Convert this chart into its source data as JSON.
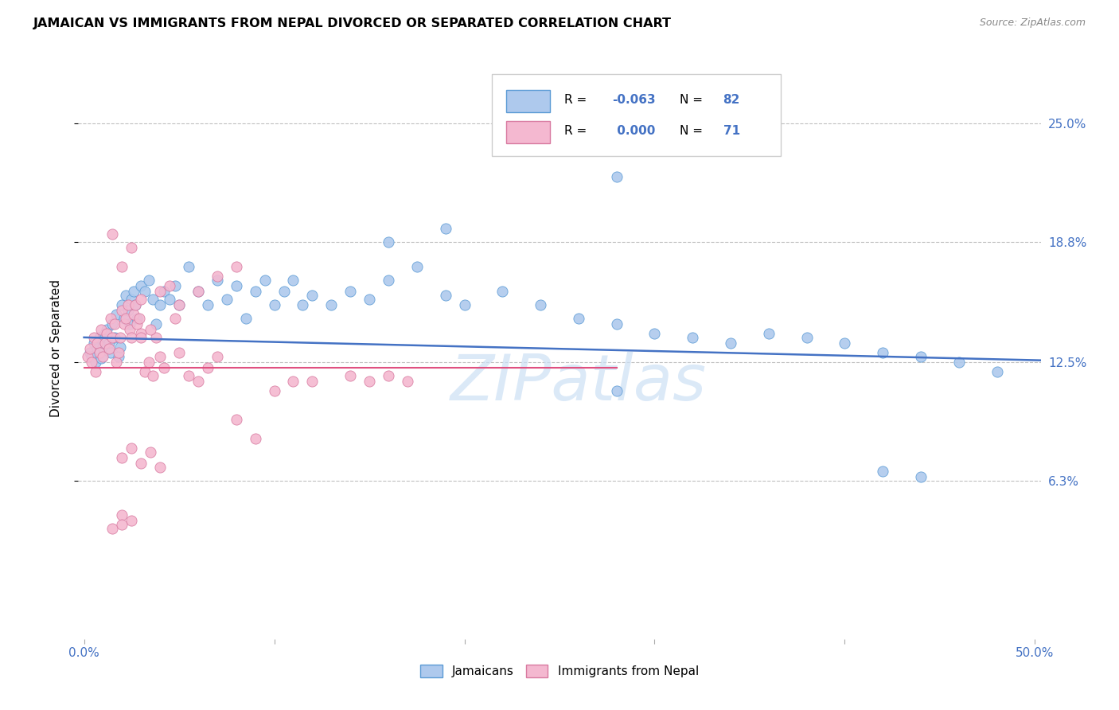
{
  "title": "JAMAICAN VS IMMIGRANTS FROM NEPAL DIVORCED OR SEPARATED CORRELATION CHART",
  "source": "Source: ZipAtlas.com",
  "ylabel": "Divorced or Separated",
  "ytick_values": [
    0.063,
    0.125,
    0.188,
    0.25
  ],
  "ytick_labels": [
    "6.3%",
    "12.5%",
    "18.8%",
    "25.0%"
  ],
  "xlim": [
    -0.003,
    0.503
  ],
  "ylim": [
    -0.02,
    0.285
  ],
  "blue_scatter_color": "#aec9ed",
  "blue_edge_color": "#5b9bd5",
  "pink_scatter_color": "#f4b8d0",
  "pink_edge_color": "#d87aa0",
  "blue_line_color": "#4472c4",
  "pink_line_color": "#e05080",
  "grid_color": "#c0c0c0",
  "watermark_color": "#cce0f5",
  "legend_box_color": "#f0f0f0",
  "legend_edge_color": "#cccccc",
  "r1_val": "-0.063",
  "n1_val": "82",
  "r2_val": "0.000",
  "n2_val": "71",
  "blue_line_x": [
    0.0,
    0.503
  ],
  "blue_line_y": [
    0.138,
    0.126
  ],
  "pink_line_x": [
    0.0,
    0.28
  ],
  "pink_line_y": [
    0.122,
    0.122
  ]
}
